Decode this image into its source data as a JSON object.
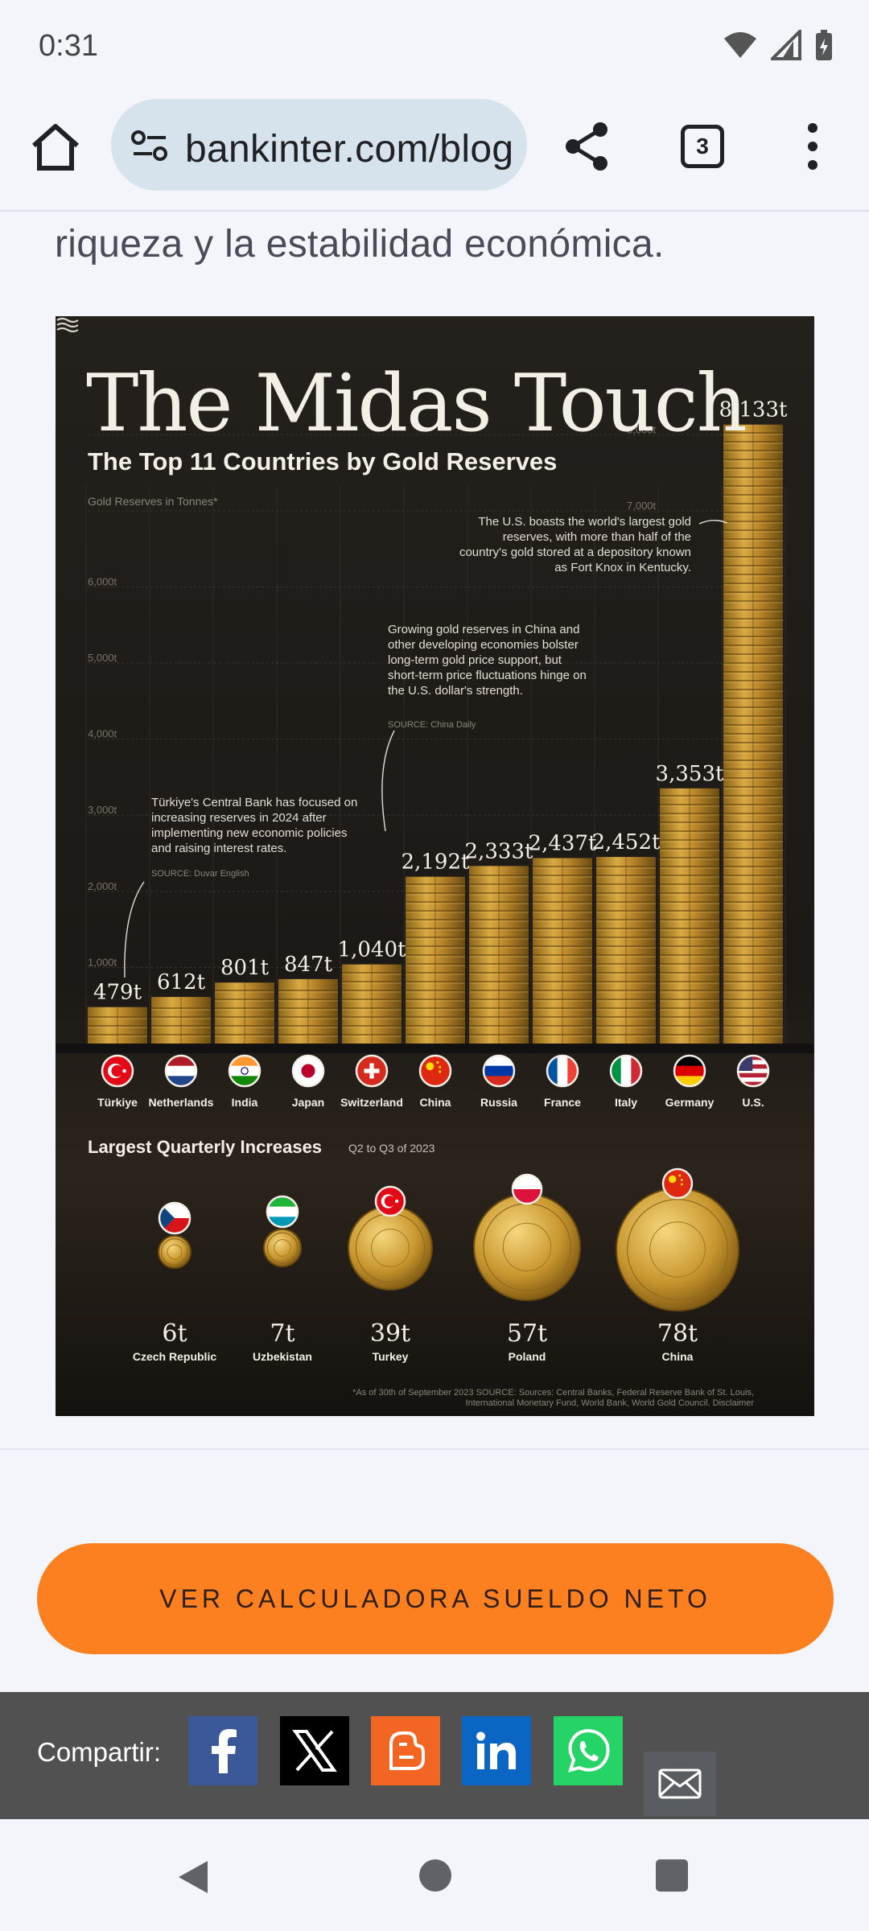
{
  "status": {
    "time": "0:31"
  },
  "browser": {
    "url": "bankinter.com/blog",
    "tab_count": "3"
  },
  "article": {
    "text_line": "riqueza y la estabilidad económica."
  },
  "infographic": {
    "title": "The Midas Touch",
    "subtitle": "The Top 11 Countries by Gold Reserves",
    "unit_label": "Gold Reserves in Tonnes*",
    "annotations": {
      "us": "The U.S. boasts the world's largest gold reserves, with more than half of the country's gold stored at a depository known as Fort Knox in Kentucky.",
      "china": "Growing gold reserves in China and other developing economies bolster long-term gold price support, but short-term price fluctuations hinge on the U.S. dollar's strength.",
      "china_source": "SOURCE: China Daily",
      "turkiye": "Türkiye's Central Bank has focused on increasing reserves in 2024 after implementing new economic policies and raising interest rates.",
      "turkiye_source": "SOURCE: Duvar English"
    },
    "quarterly_title": "Largest Quarterly Increases",
    "quarterly_subtitle": "Q2 to Q3 of 2023",
    "footnote": "*As of 30th of September 2023 SOURCE: Sources: Central Banks, Federal Reserve Bank of St. Louis, International Monetary Fund, World Bank, World Gold Council. Disclaimer"
  },
  "chart_data": [
    {
      "type": "bar",
      "title": "The Top 11 Countries by Gold Reserves",
      "ylabel": "Gold Reserves in Tonnes*",
      "ylim": [
        0,
        8500
      ],
      "yticks": [
        1000,
        2000,
        3000,
        4000,
        5000,
        6000,
        7000,
        8000
      ],
      "ytick_labels": [
        "1,000t",
        "2,000t",
        "3,000t",
        "4,000t",
        "5,000t",
        "6,000t",
        "7,000t",
        "8,000t"
      ],
      "grid": true,
      "categories": [
        "Türkiye",
        "Netherlands",
        "India",
        "Japan",
        "Switzerland",
        "China",
        "Russia",
        "France",
        "Italy",
        "Germany",
        "U.S."
      ],
      "values": [
        479,
        612,
        801,
        847,
        1040,
        2192,
        2333,
        2437,
        2452,
        3353,
        8133
      ],
      "value_labels": [
        "479t",
        "612t",
        "801t",
        "847t",
        "1,040t",
        "2,192t",
        "2,333t",
        "2,437t",
        "2,452t",
        "3,353t",
        "8,133t"
      ]
    },
    {
      "type": "bar",
      "title": "Largest Quarterly Increases",
      "subtitle": "Q2 to Q3 of 2023",
      "categories": [
        "Czech Republic",
        "Uzbekistan",
        "Turkey",
        "Poland",
        "China"
      ],
      "values": [
        6,
        7,
        39,
        57,
        78
      ],
      "value_labels": [
        "6t",
        "7t",
        "39t",
        "57t",
        "78t"
      ]
    }
  ],
  "cta": {
    "label": "VER CALCULADORA SUELDO NETO"
  },
  "share": {
    "label": "Compartir:"
  },
  "colors": {
    "accent": "#fc8020",
    "gold": "#c9962e",
    "share_bg": "#515151"
  },
  "icons": [
    "home-icon",
    "site-settings-icon",
    "share-icon",
    "tabs-icon",
    "menu-icon",
    "facebook-icon",
    "x-icon",
    "blogger-icon",
    "linkedin-icon",
    "whatsapp-icon",
    "mail-icon"
  ]
}
